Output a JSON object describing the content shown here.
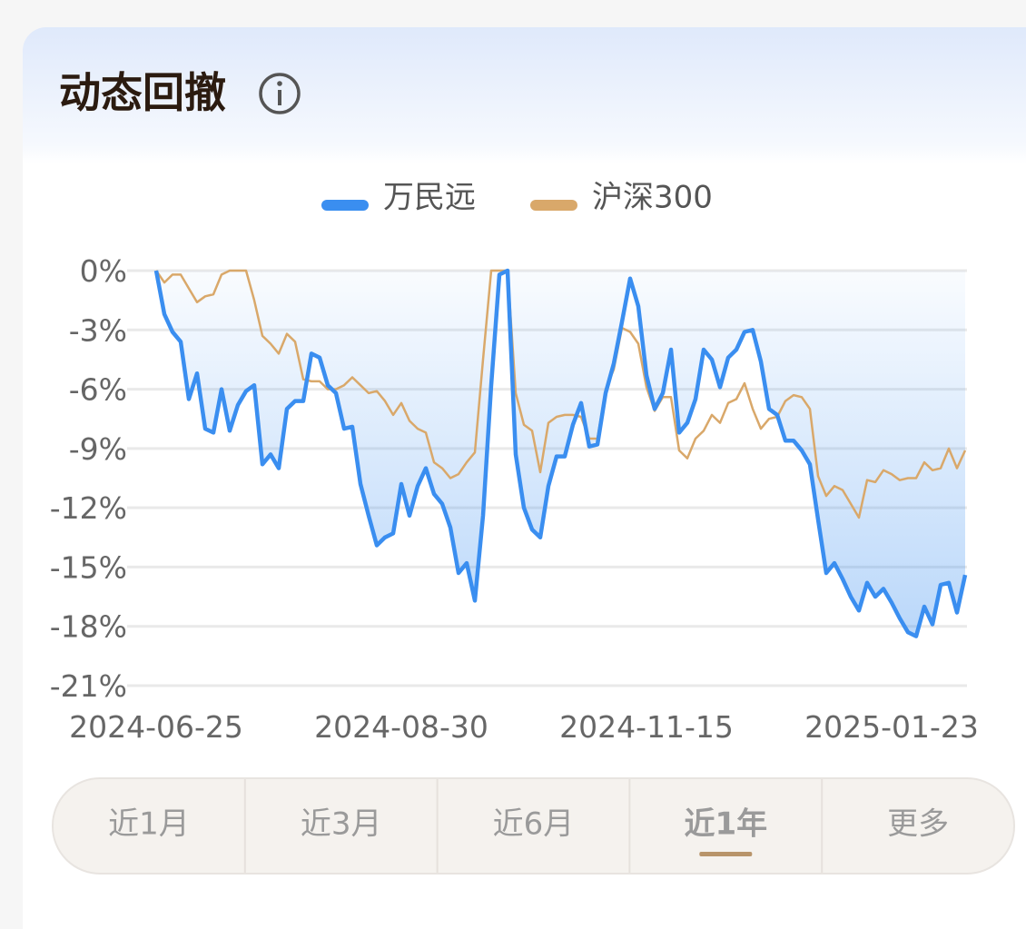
{
  "header": {
    "title": "动态回撤"
  },
  "chart_data": {
    "type": "line",
    "categories": [
      "2024-06-25",
      null,
      null,
      null,
      null,
      null,
      null,
      null,
      null,
      null,
      null,
      null,
      null,
      null,
      null,
      null,
      null,
      null,
      null,
      null,
      null,
      null,
      null,
      null,
      null,
      null,
      null,
      null,
      null,
      null,
      "2024-08-30",
      null,
      null,
      null,
      null,
      null,
      null,
      null,
      null,
      null,
      null,
      null,
      null,
      null,
      null,
      null,
      null,
      null,
      null,
      null,
      null,
      null,
      null,
      null,
      null,
      null,
      null,
      null,
      null,
      null,
      "2024-11-15",
      null,
      null,
      null,
      null,
      null,
      null,
      null,
      null,
      null,
      null,
      null,
      null,
      null,
      null,
      null,
      null,
      null,
      null,
      null,
      null,
      null,
      null,
      null,
      null,
      null,
      null,
      null,
      null,
      null,
      "2025-01-23",
      null,
      null,
      null,
      null,
      null,
      null,
      null,
      null,
      null
    ],
    "series": [
      {
        "name": "万民远",
        "color": "#3a8ef0",
        "area": true,
        "values": [
          0,
          -2.2,
          -3.1,
          -3.6,
          -6.5,
          -5.2,
          -8.0,
          -8.2,
          -6.0,
          -8.1,
          -6.8,
          -6.1,
          -5.8,
          -9.8,
          -9.3,
          -10.0,
          -7.0,
          -6.6,
          -6.6,
          -4.2,
          -4.4,
          -5.8,
          -6.2,
          -8.0,
          -7.9,
          -10.8,
          -12.4,
          -13.9,
          -13.5,
          -13.3,
          -10.8,
          -12.4,
          -10.9,
          -10.0,
          -11.3,
          -11.8,
          -13.0,
          -15.3,
          -14.8,
          -16.7,
          -12.4,
          -5.8,
          -0.2,
          0,
          -9.3,
          -12.0,
          -13.1,
          -13.5,
          -10.9,
          -9.4,
          -9.4,
          -7.8,
          -6.7,
          -8.9,
          -8.8,
          -6.2,
          -4.7,
          -2.6,
          -0.4,
          -1.8,
          -5.3,
          -7.0,
          -6.2,
          -4.0,
          -8.2,
          -7.7,
          -6.5,
          -4.0,
          -4.5,
          -5.9,
          -4.4,
          -4.0,
          -3.1,
          -3.0,
          -4.6,
          -7.0,
          -7.3,
          -8.6,
          -8.6,
          -9.1,
          -9.8,
          -12.6,
          -15.3,
          -14.8,
          -15.6,
          -16.5,
          -17.2,
          -15.8,
          -16.5,
          -16.1,
          -16.8,
          -17.6,
          -18.3,
          -18.5,
          -17.0,
          -17.9,
          -15.9,
          -15.8,
          -17.3,
          -15.4
        ]
      },
      {
        "name": "沪深300",
        "color": "#d9a86a",
        "area": false,
        "values": [
          0,
          -0.6,
          -0.2,
          -0.2,
          -0.9,
          -1.6,
          -1.3,
          -1.2,
          -0.2,
          0,
          0,
          0,
          -1.5,
          -3.3,
          -3.7,
          -4.2,
          -3.2,
          -3.6,
          -5.5,
          -5.6,
          -5.6,
          -6.0,
          -6.0,
          -5.8,
          -5.4,
          -5.8,
          -6.2,
          -6.1,
          -6.6,
          -7.3,
          -6.7,
          -7.6,
          -8.0,
          -8.2,
          -9.7,
          -10.0,
          -10.5,
          -10.3,
          -9.7,
          -9.2,
          -4.5,
          0,
          0,
          0,
          -6.2,
          -7.8,
          -8.1,
          -10.2,
          -7.7,
          -7.4,
          -7.3,
          -7.3,
          -7.4,
          -8.5,
          -8.5,
          -6.0,
          -5.0,
          -2.9,
          -3.1,
          -3.7,
          -5.9,
          -7.1,
          -6.4,
          -6.4,
          -9.1,
          -9.5,
          -8.5,
          -8.1,
          -7.3,
          -7.7,
          -6.7,
          -6.5,
          -5.7,
          -7.0,
          -8.0,
          -7.5,
          -7.4,
          -6.6,
          -6.3,
          -6.4,
          -7.0,
          -10.4,
          -11.4,
          -10.9,
          -11.1,
          -11.8,
          -12.5,
          -10.6,
          -10.7,
          -10.1,
          -10.3,
          -10.6,
          -10.5,
          -10.5,
          -9.7,
          -10.1,
          -10.0,
          -9.0,
          -10.0,
          -9.1
        ]
      }
    ],
    "ylim": [
      -21,
      0
    ],
    "yticks": [
      {
        "value": 0,
        "label": "0%"
      },
      {
        "value": -3,
        "label": "-3%"
      },
      {
        "value": -6,
        "label": "-6%"
      },
      {
        "value": -9,
        "label": "-9%"
      },
      {
        "value": -12,
        "label": "-12%"
      },
      {
        "value": -15,
        "label": "-15%"
      },
      {
        "value": -18,
        "label": "-18%"
      },
      {
        "value": -21,
        "label": "-21%"
      }
    ],
    "grid": true
  },
  "tabs": {
    "items": [
      "近1月",
      "近3月",
      "近6月",
      "近1年",
      "更多"
    ],
    "active": 3
  }
}
